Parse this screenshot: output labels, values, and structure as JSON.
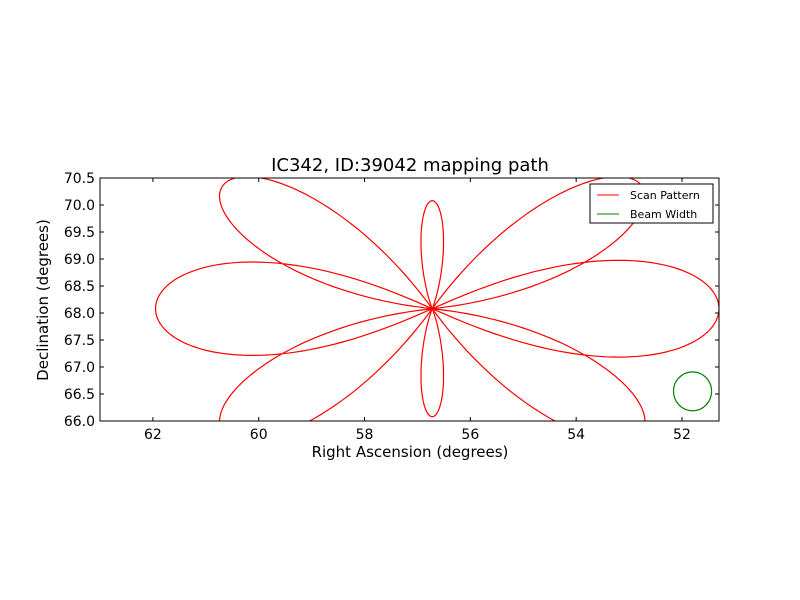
{
  "chart_data": {
    "type": "line",
    "title": "IC342, ID:39042 mapping path",
    "xlabel": "Right Ascension (degrees)",
    "ylabel": "Declination (degrees)",
    "xlim": [
      63.0,
      51.3
    ],
    "ylim": [
      66.0,
      70.5
    ],
    "x_inverted": true,
    "xticks": [
      62,
      60,
      58,
      56,
      54,
      52
    ],
    "yticks": [
      66.0,
      66.5,
      67.0,
      67.5,
      68.0,
      68.5,
      69.0,
      69.5,
      70.0,
      70.5
    ],
    "grid": false,
    "legend_position": "upper right",
    "series": [
      {
        "name": "Scan Pattern",
        "color": "#ff0000",
        "pattern": "rose",
        "center": [
          56.72,
          68.08
        ],
        "petals": 8,
        "petal_angles_deg": [
          0,
          30,
          90,
          150,
          180,
          210,
          270,
          330
        ],
        "x_extent_deg": [
          61.95,
          51.3
        ],
        "y_extent_deg": [
          66.08,
          70.08
        ]
      },
      {
        "name": "Beam Width",
        "color": "#008000",
        "pattern": "circle",
        "center": [
          51.8,
          66.55
        ],
        "radius_deg": 0.36
      }
    ]
  }
}
